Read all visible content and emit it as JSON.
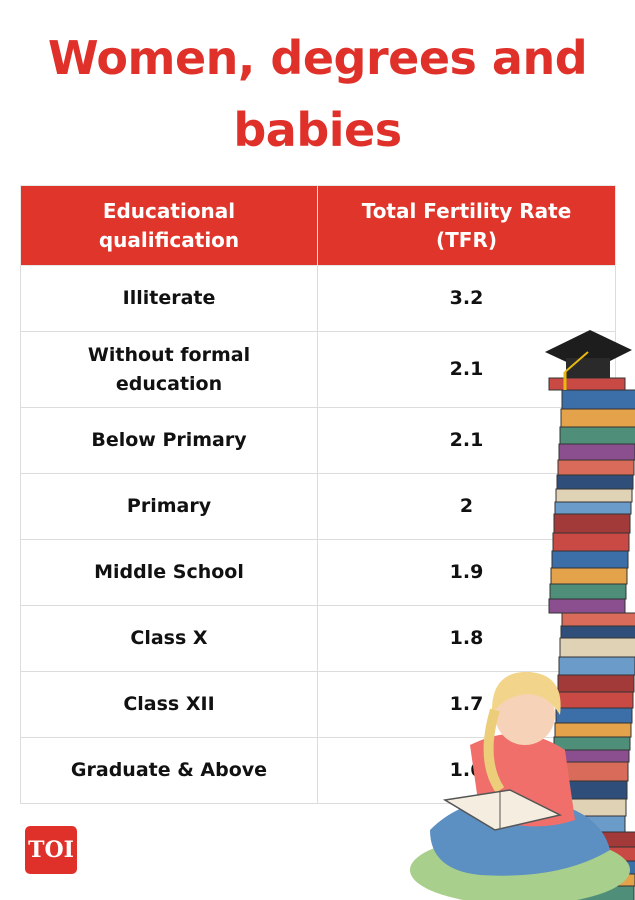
{
  "header": {
    "title": "Women, degrees and babies"
  },
  "table": {
    "columns": [
      "Educational qualification",
      "Total Fertility Rate (TFR)"
    ],
    "rows": [
      [
        "Illiterate",
        "3.2"
      ],
      [
        "Without formal education",
        "2.1"
      ],
      [
        "Below Primary",
        "2.1"
      ],
      [
        "Primary",
        "2"
      ],
      [
        "Middle School",
        "1.9"
      ],
      [
        "Class X",
        "1.8"
      ],
      [
        "Class XII",
        "1.7"
      ],
      [
        "Graduate & Above",
        "1.6"
      ]
    ]
  },
  "logo": {
    "text": "TOI"
  }
}
